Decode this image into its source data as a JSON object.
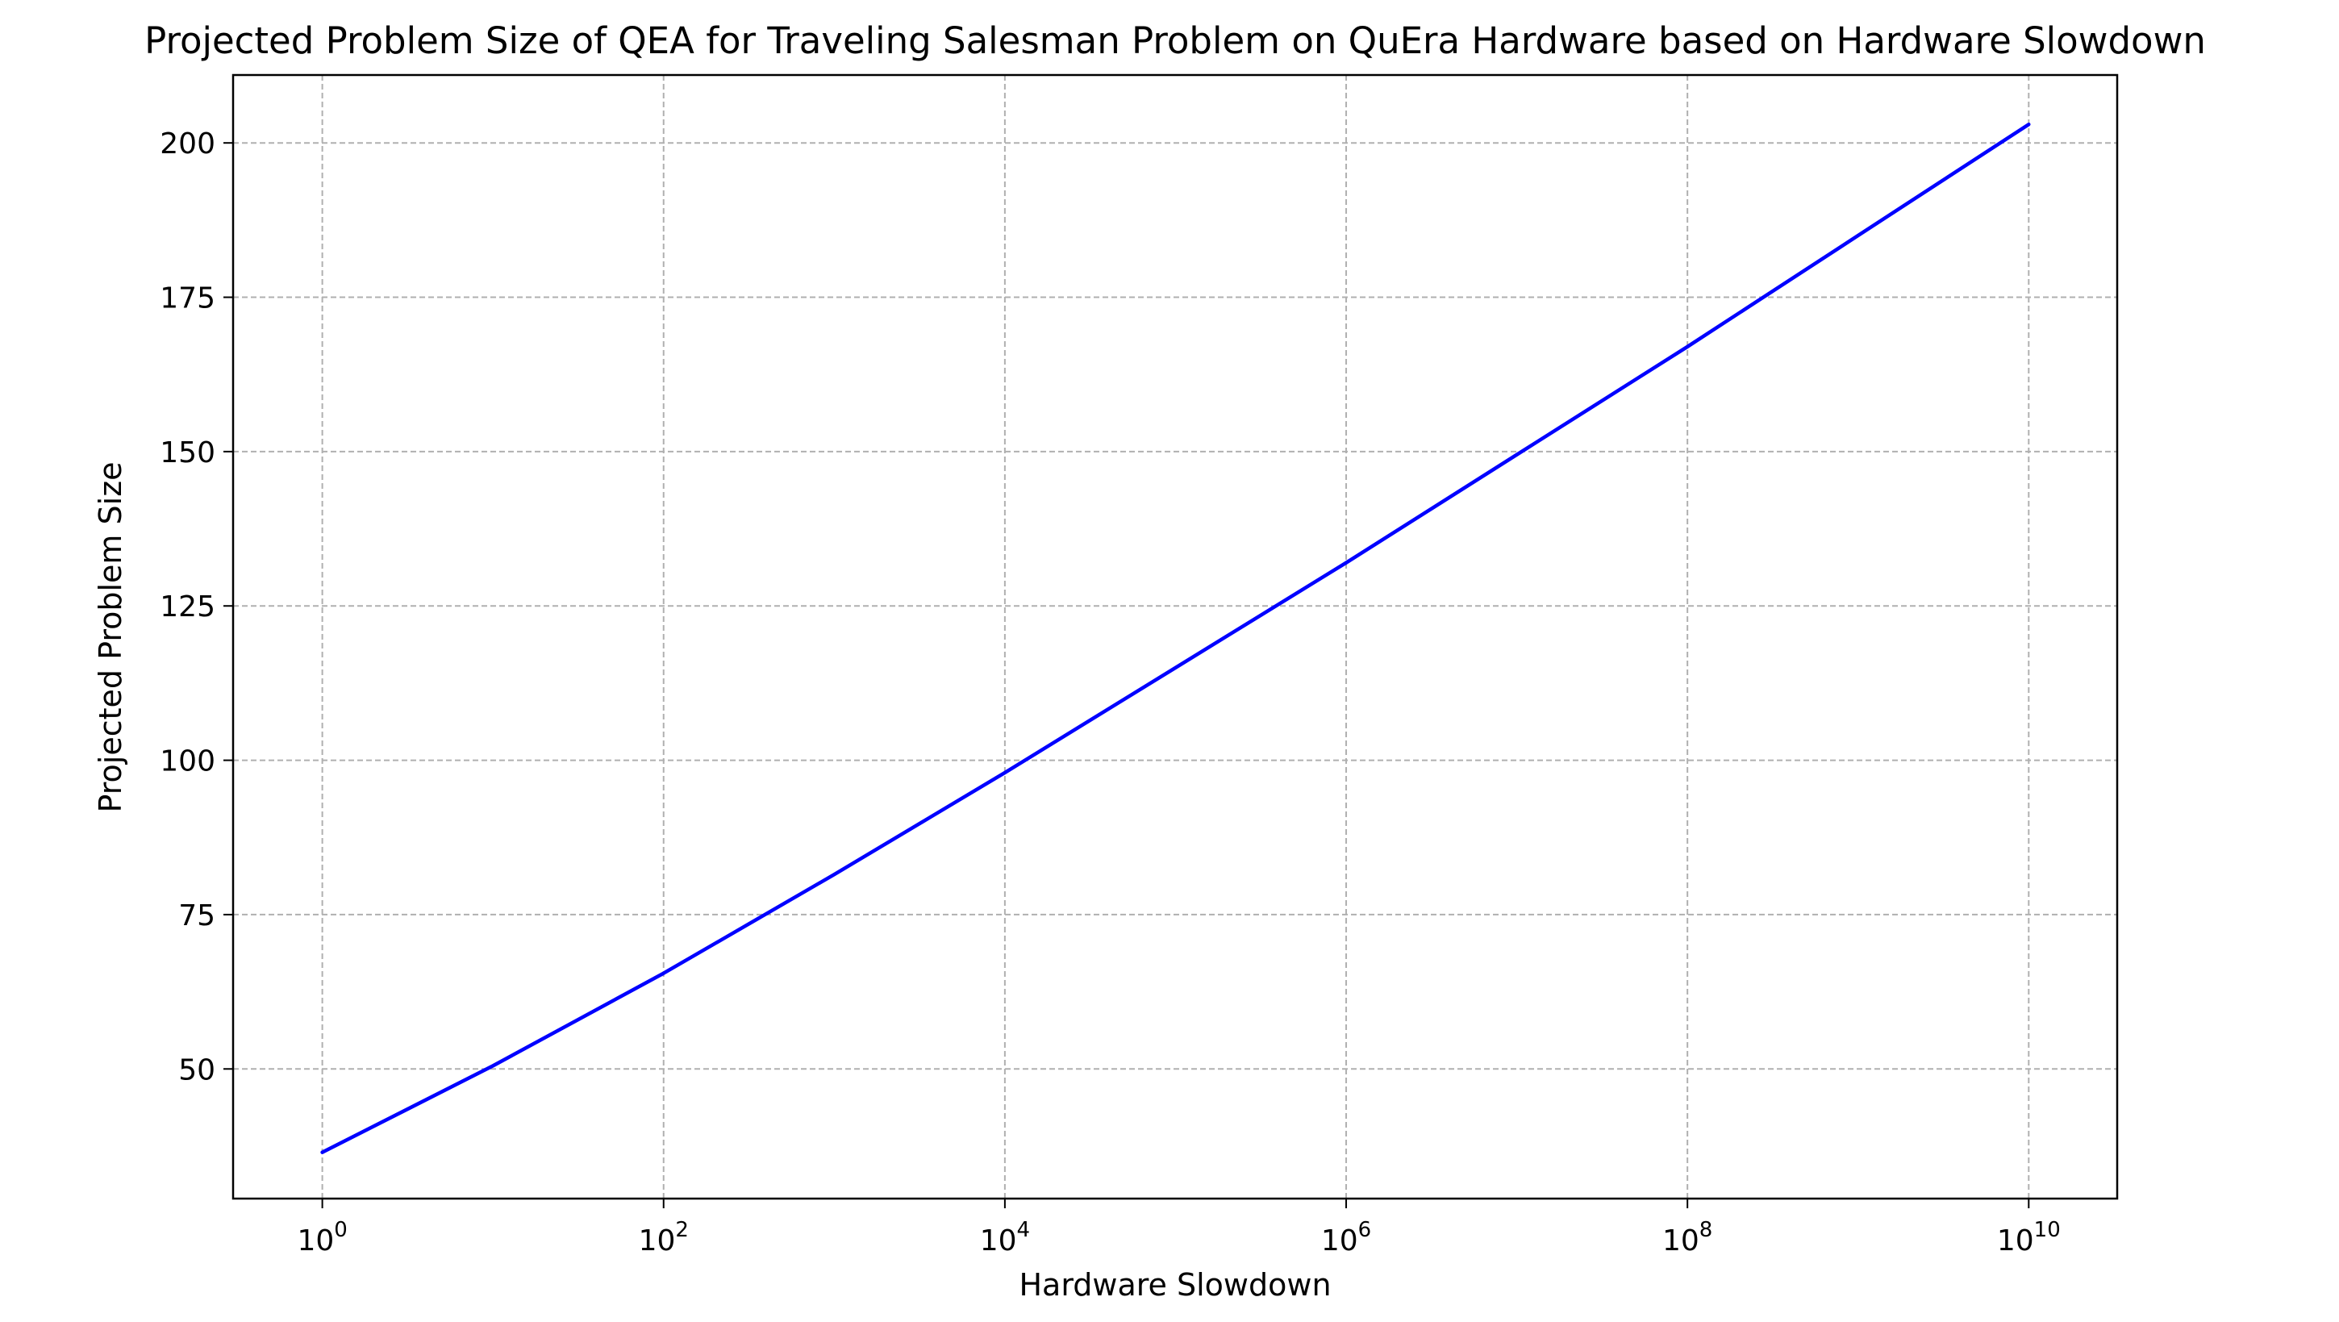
{
  "chart_data": {
    "type": "line",
    "title": "Projected Problem Size of QEA for Traveling Salesman Problem on QuEra Hardware based on Hardware Slowdown",
    "xlabel": "Hardware Slowdown",
    "ylabel": "Projected Problem Size",
    "x_scale": "log",
    "xlim": [
      0.3,
      33000000000
    ],
    "ylim": [
      29,
      211
    ],
    "grid": true,
    "x_ticks": [
      {
        "value": 1,
        "base": "10",
        "exp": "0"
      },
      {
        "value": 100,
        "base": "10",
        "exp": "2"
      },
      {
        "value": 10000,
        "base": "10",
        "exp": "4"
      },
      {
        "value": 1000000,
        "base": "10",
        "exp": "6"
      },
      {
        "value": 100000000,
        "base": "10",
        "exp": "8"
      },
      {
        "value": 10000000000,
        "base": "10",
        "exp": "10"
      }
    ],
    "y_ticks": [
      {
        "value": 50,
        "label": "50"
      },
      {
        "value": 75,
        "label": "75"
      },
      {
        "value": 100,
        "label": "100"
      },
      {
        "value": 125,
        "label": "125"
      },
      {
        "value": 150,
        "label": "150"
      },
      {
        "value": 175,
        "label": "175"
      },
      {
        "value": 200,
        "label": "200"
      }
    ],
    "series": [
      {
        "color": "#0000ff",
        "x": [
          1,
          10,
          100,
          1000,
          10000,
          100000,
          1000000,
          10000000,
          100000000,
          1000000000,
          10000000000
        ],
        "y": [
          36.5,
          50.5,
          65.5,
          81.5,
          98,
          115,
          132,
          149.5,
          167,
          185,
          203
        ]
      }
    ]
  }
}
